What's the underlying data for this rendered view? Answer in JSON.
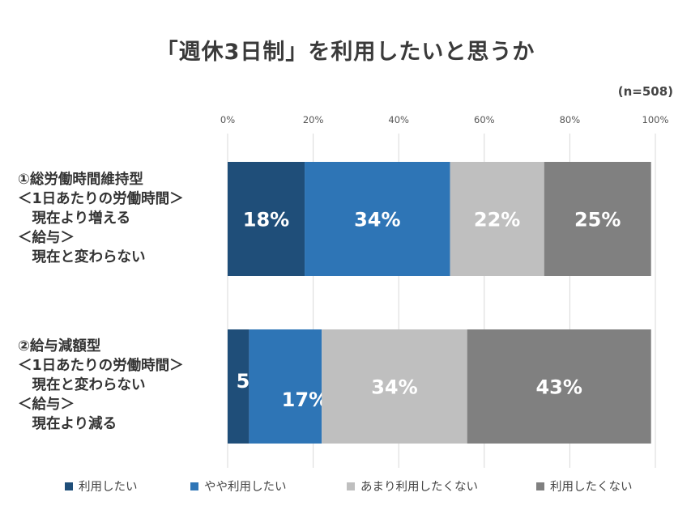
{
  "chart_data": {
    "type": "bar",
    "orientation": "horizontal",
    "stacked": true,
    "title": "「週休3日制」を利用したいと思うか",
    "note": "(n=508)",
    "xlim": [
      0,
      100
    ],
    "ticks": [
      "0%",
      "20%",
      "40%",
      "60%",
      "80%",
      "100%"
    ],
    "grid": true,
    "legend_position": "bottom",
    "categories": [
      [
        "①総労働時間維持型",
        "＜1日あたりの労働時間＞",
        "　現在より増える",
        "＜給与＞",
        "　現在と変わらない"
      ],
      [
        "②給与減額型",
        "＜1日あたりの労働時間＞",
        "　現在と変わらない",
        "＜給与＞",
        "　現在より減る"
      ]
    ],
    "series": [
      {
        "name": "利用したい",
        "color": "#1f4e79",
        "values": [
          18,
          5
        ],
        "labels": [
          "18%",
          "5%"
        ]
      },
      {
        "name": "やや利用したい",
        "color": "#2e75b6",
        "values": [
          34,
          17
        ],
        "labels": [
          "34%",
          "17%"
        ]
      },
      {
        "name": "あまり利用したくない",
        "color": "#bfbfbf",
        "values": [
          22,
          34
        ],
        "labels": [
          "22%",
          "34%"
        ]
      },
      {
        "name": "利用したくない",
        "color": "#808080",
        "values": [
          25,
          43
        ],
        "labels": [
          "25%",
          "43%"
        ]
      }
    ]
  }
}
